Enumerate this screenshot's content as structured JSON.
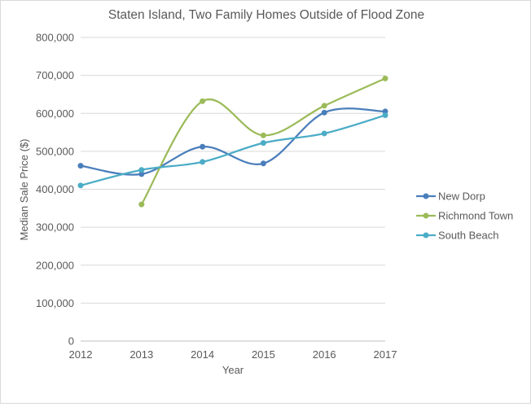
{
  "chart_data": {
    "type": "line",
    "title": "Staten Island, Two Family Homes Outside of Flood Zone",
    "xlabel": "Year",
    "ylabel": "Median Sale Price ($)",
    "x": [
      2012,
      2013,
      2014,
      2015,
      2016,
      2017
    ],
    "ylim": [
      0,
      800000
    ],
    "yticks": [
      0,
      100000,
      200000,
      300000,
      400000,
      500000,
      600000,
      700000,
      800000
    ],
    "ytick_labels": [
      "0",
      "100,000",
      "200,000",
      "300,000",
      "400,000",
      "500,000",
      "600,000",
      "700,000",
      "800,000"
    ],
    "grid": true,
    "legend_position": "right",
    "smooth": true,
    "series": [
      {
        "name": "New Dorp",
        "color": "#4a7ebb",
        "values": [
          462000,
          440000,
          512000,
          468000,
          602000,
          605000
        ]
      },
      {
        "name": "Richmond Town",
        "color": "#9bbb59",
        "values": [
          null,
          360000,
          632000,
          542000,
          620000,
          692000
        ]
      },
      {
        "name": "South Beach",
        "color": "#4bacc6",
        "values": [
          410000,
          451000,
          472000,
          522000,
          547000,
          595000
        ]
      }
    ]
  }
}
